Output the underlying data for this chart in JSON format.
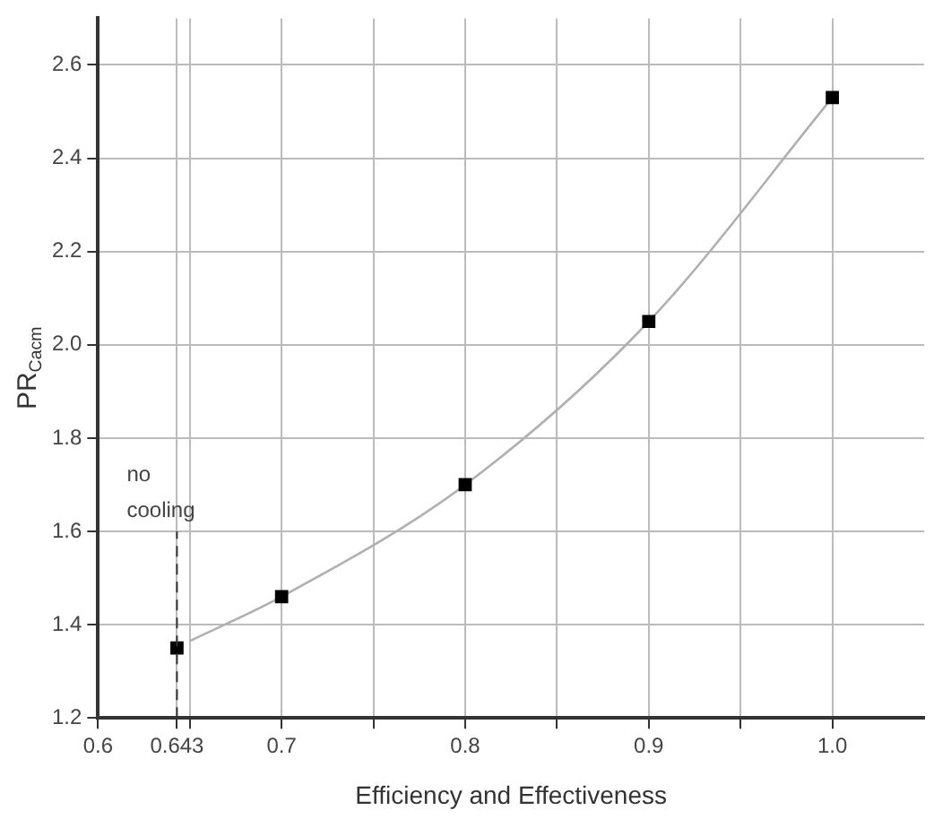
{
  "chart_data": {
    "type": "scatter",
    "xlabel": "Efficiency and Effectiveness",
    "ylabel": "PR$_{Cacm}$",
    "series": [
      {
        "type": "line",
        "color": "#b0b0b0",
        "x": [
          0.65,
          0.7,
          0.8,
          0.9,
          1.0
        ],
        "values": [
          1.365,
          1.46,
          1.7,
          2.05,
          2.53
        ],
        "marker": "none"
      },
      {
        "color": "#000000",
        "x": [
          0.643,
          0.7,
          0.8,
          0.9,
          1.0
        ],
        "values": [
          1.35,
          1.46,
          1.7,
          2.05,
          2.53
        ],
        "marker": "square"
      }
    ],
    "xlim": [
      0.6,
      1.05
    ],
    "xticks": [
      {
        "value": 0.6,
        "label": "0.6"
      },
      {
        "value": 0.643,
        "label": "0.643"
      },
      {
        "value": 0.65,
        "label": null
      },
      {
        "value": 0.7,
        "label": "0.7"
      },
      {
        "value": 0.75,
        "label": null
      },
      {
        "value": 0.8,
        "label": "0.8"
      },
      {
        "value": 0.85,
        "label": null
      },
      {
        "value": 0.9,
        "label": "0.9"
      },
      {
        "value": 0.95,
        "label": null
      },
      {
        "value": 1,
        "label": "1.0"
      }
    ],
    "ylim": [
      1.2,
      2.7
    ],
    "yticks": [
      {
        "value": 1.2,
        "label": "1.2"
      },
      {
        "value": 1.4,
        "label": "1.4"
      },
      {
        "value": 1.6,
        "label": "1.6"
      },
      {
        "value": 1.8,
        "label": "1.8"
      },
      {
        "value": 2,
        "label": "2.0"
      },
      {
        "value": 2.2,
        "label": "2.2"
      },
      {
        "value": 2.4,
        "label": "2.4"
      },
      {
        "value": 2.6,
        "label": "2.6"
      }
    ],
    "ref_lines": [
      {
        "axis": "x",
        "value": 0.643,
        "label": "no cooling",
        "line_style": "dashed",
        "color": "#333333"
      }
    ],
    "grid": true,
    "legend": false
  }
}
